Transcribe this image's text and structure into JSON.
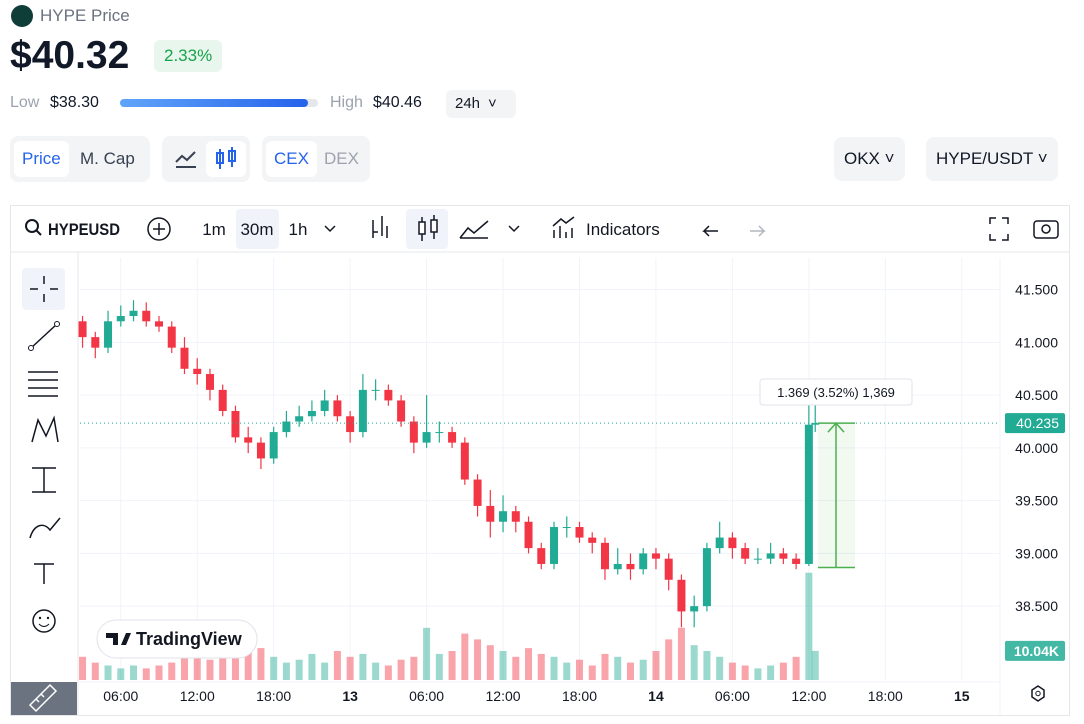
{
  "header": {
    "coin": "HYPE Price",
    "price": "$40.32",
    "change": "2.33%",
    "low_label": "Low",
    "low": "$38.30",
    "high_label": "High",
    "high": "$40.46",
    "range": "24h"
  },
  "tabs": {
    "metric": [
      "Price",
      "M. Cap"
    ],
    "source": [
      "CEX",
      "DEX"
    ],
    "exchange": "OKX",
    "pair": "HYPE/USDT"
  },
  "toolbar": {
    "symbol": "HYPEUSD",
    "intervals": [
      "1m",
      "30m",
      "1h"
    ],
    "indicators": "Indicators"
  },
  "logo": "TradingView",
  "chart_data": {
    "type": "candlestick",
    "up_color": "#22ab94",
    "down_color": "#f23645",
    "xlim": [
      2.8,
      75
    ],
    "xticks": [
      {
        "value": 6,
        "label": "06:00"
      },
      {
        "value": 12,
        "label": "12:00"
      },
      {
        "value": 18,
        "label": "18:00"
      },
      {
        "value": 24,
        "label": "13"
      },
      {
        "value": 30,
        "label": "06:00"
      },
      {
        "value": 36,
        "label": "12:00"
      },
      {
        "value": 42,
        "label": "18:00"
      },
      {
        "value": 48,
        "label": "14"
      },
      {
        "value": 54,
        "label": "06:00"
      },
      {
        "value": 60,
        "label": "12:00"
      },
      {
        "value": 66,
        "label": "18:00"
      },
      {
        "value": 72,
        "label": "15"
      }
    ],
    "ylim": [
      37.8,
      41.8
    ],
    "yticks": [
      {
        "value": 38.5,
        "label": "38.500"
      },
      {
        "value": 39,
        "label": "39.000"
      },
      {
        "value": 39.5,
        "label": "39.500"
      },
      {
        "value": 40,
        "label": "40.000"
      },
      {
        "value": 40.5,
        "label": "40.500"
      },
      {
        "value": 41,
        "label": "41.000"
      },
      {
        "value": 41.5,
        "label": "41.500"
      }
    ],
    "grid": true,
    "candles": {
      "x": [
        3,
        4,
        5,
        6,
        7,
        8,
        9,
        10,
        11,
        12,
        13,
        14,
        15,
        16,
        17,
        18,
        19,
        20,
        21,
        22,
        23,
        24,
        25,
        26,
        27,
        28,
        29,
        30,
        31,
        32,
        33,
        34,
        35,
        36,
        37,
        38,
        39,
        40,
        41,
        42,
        43,
        44,
        45,
        46,
        47,
        48,
        49,
        50,
        51,
        52,
        53,
        54,
        55,
        56,
        57,
        58,
        59,
        60,
        60.5
      ],
      "open": [
        41.2,
        41.05,
        40.95,
        41.2,
        41.25,
        41.3,
        41.2,
        41.15,
        40.95,
        40.75,
        40.7,
        40.55,
        40.35,
        40.1,
        40.05,
        39.9,
        40.15,
        40.25,
        40.3,
        40.35,
        40.45,
        40.3,
        40.15,
        40.55,
        40.55,
        40.45,
        40.25,
        40.05,
        40.15,
        40.15,
        40.05,
        39.7,
        39.45,
        39.3,
        39.4,
        39.3,
        39.05,
        38.9,
        39.25,
        39.25,
        39.15,
        39.1,
        38.85,
        38.9,
        38.85,
        39.0,
        38.95,
        38.75,
        38.45,
        38.5,
        39.05,
        39.15,
        39.05,
        38.95,
        38.95,
        39.0,
        38.95,
        38.9,
        40.22
      ],
      "high": [
        41.25,
        41.1,
        41.3,
        41.35,
        41.4,
        41.38,
        41.25,
        41.2,
        41.05,
        40.85,
        40.75,
        40.6,
        40.4,
        40.2,
        40.1,
        40.2,
        40.35,
        40.4,
        40.45,
        40.55,
        40.5,
        40.35,
        40.7,
        40.65,
        40.6,
        40.5,
        40.3,
        40.5,
        40.25,
        40.2,
        40.1,
        39.75,
        39.6,
        39.55,
        39.45,
        39.35,
        39.1,
        39.3,
        39.35,
        39.3,
        39.2,
        39.15,
        39.05,
        39.0,
        39.05,
        39.05,
        39.0,
        38.8,
        38.6,
        39.1,
        39.3,
        39.2,
        39.1,
        39.05,
        39.1,
        39.05,
        39.0,
        40.5,
        40.45
      ],
      "low": [
        40.95,
        40.85,
        40.9,
        41.15,
        41.2,
        41.15,
        41.1,
        40.9,
        40.7,
        40.6,
        40.45,
        40.3,
        40.05,
        39.95,
        39.8,
        39.85,
        40.1,
        40.2,
        40.25,
        40.3,
        40.25,
        40.05,
        40.1,
        40.45,
        40.4,
        40.2,
        39.95,
        40.0,
        40.05,
        40.0,
        39.65,
        39.35,
        39.15,
        39.2,
        39.2,
        39.0,
        38.85,
        38.85,
        39.15,
        39.1,
        39.0,
        38.75,
        38.8,
        38.75,
        38.8,
        38.85,
        38.65,
        38.3,
        38.3,
        38.45,
        39.0,
        38.95,
        38.9,
        38.9,
        38.9,
        38.9,
        38.85,
        38.88,
        40.15
      ],
      "close": [
        41.05,
        40.95,
        41.2,
        41.25,
        41.3,
        41.2,
        41.15,
        40.95,
        40.75,
        40.7,
        40.55,
        40.35,
        40.1,
        40.05,
        39.9,
        40.15,
        40.25,
        40.3,
        40.35,
        40.45,
        40.3,
        40.15,
        40.55,
        40.55,
        40.45,
        40.25,
        40.05,
        40.15,
        40.15,
        40.05,
        39.7,
        39.45,
        39.3,
        39.4,
        39.3,
        39.05,
        38.9,
        39.25,
        39.25,
        39.15,
        39.1,
        38.85,
        38.9,
        38.85,
        39.0,
        38.95,
        38.75,
        38.45,
        38.5,
        39.05,
        39.15,
        39.05,
        38.95,
        38.95,
        39.0,
        38.95,
        38.9,
        40.22,
        40.235
      ],
      "volume": [
        8,
        6,
        5,
        4,
        5,
        4,
        5,
        6,
        9,
        10,
        7,
        12,
        10,
        14,
        11,
        8,
        6,
        7,
        9,
        6,
        10,
        8,
        9,
        6,
        5,
        7,
        8,
        18,
        9,
        10,
        16,
        14,
        12,
        10,
        8,
        11,
        9,
        8,
        6,
        7,
        5,
        9,
        8,
        6,
        7,
        10,
        14,
        18,
        12,
        10,
        8,
        6,
        5,
        4,
        5,
        6,
        8,
        37,
        10.04
      ]
    },
    "last_price": 40.235,
    "volume_label": "10.04K",
    "measure": {
      "label": "1.369 (3.52%) 1,369",
      "from": 38.866,
      "to": 40.235
    }
  }
}
